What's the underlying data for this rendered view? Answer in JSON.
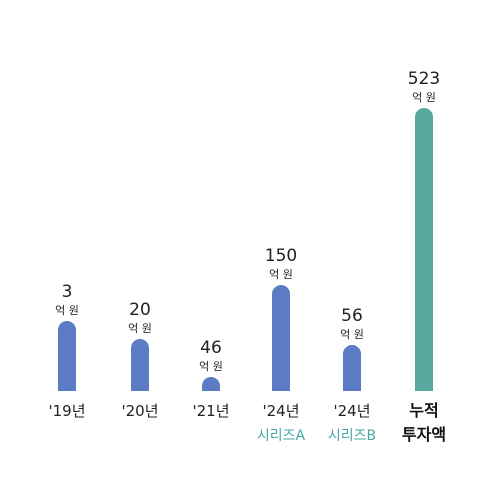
{
  "chart_data": {
    "type": "bar",
    "title": "",
    "xlabel": "",
    "ylabel": "",
    "unit": "억 원",
    "categories": [
      {
        "label": "'19년",
        "sub": ""
      },
      {
        "label": "'20년",
        "sub": ""
      },
      {
        "label": "'21년",
        "sub": ""
      },
      {
        "label": "'24년",
        "sub": "시리즈A"
      },
      {
        "label": "'24년",
        "sub": "시리즈B"
      },
      {
        "label": "누적",
        "sub": "투자액"
      }
    ],
    "values": [
      3,
      20,
      46,
      150,
      56,
      523
    ],
    "value_labels": [
      "3",
      "20",
      "46",
      "150",
      "56",
      "523"
    ],
    "total_index": 5,
    "colors": {
      "bar": "#5b7bc4",
      "total_bar": "#58a8a0",
      "sub_label": "#4aa9a5",
      "text": "#222222"
    }
  }
}
